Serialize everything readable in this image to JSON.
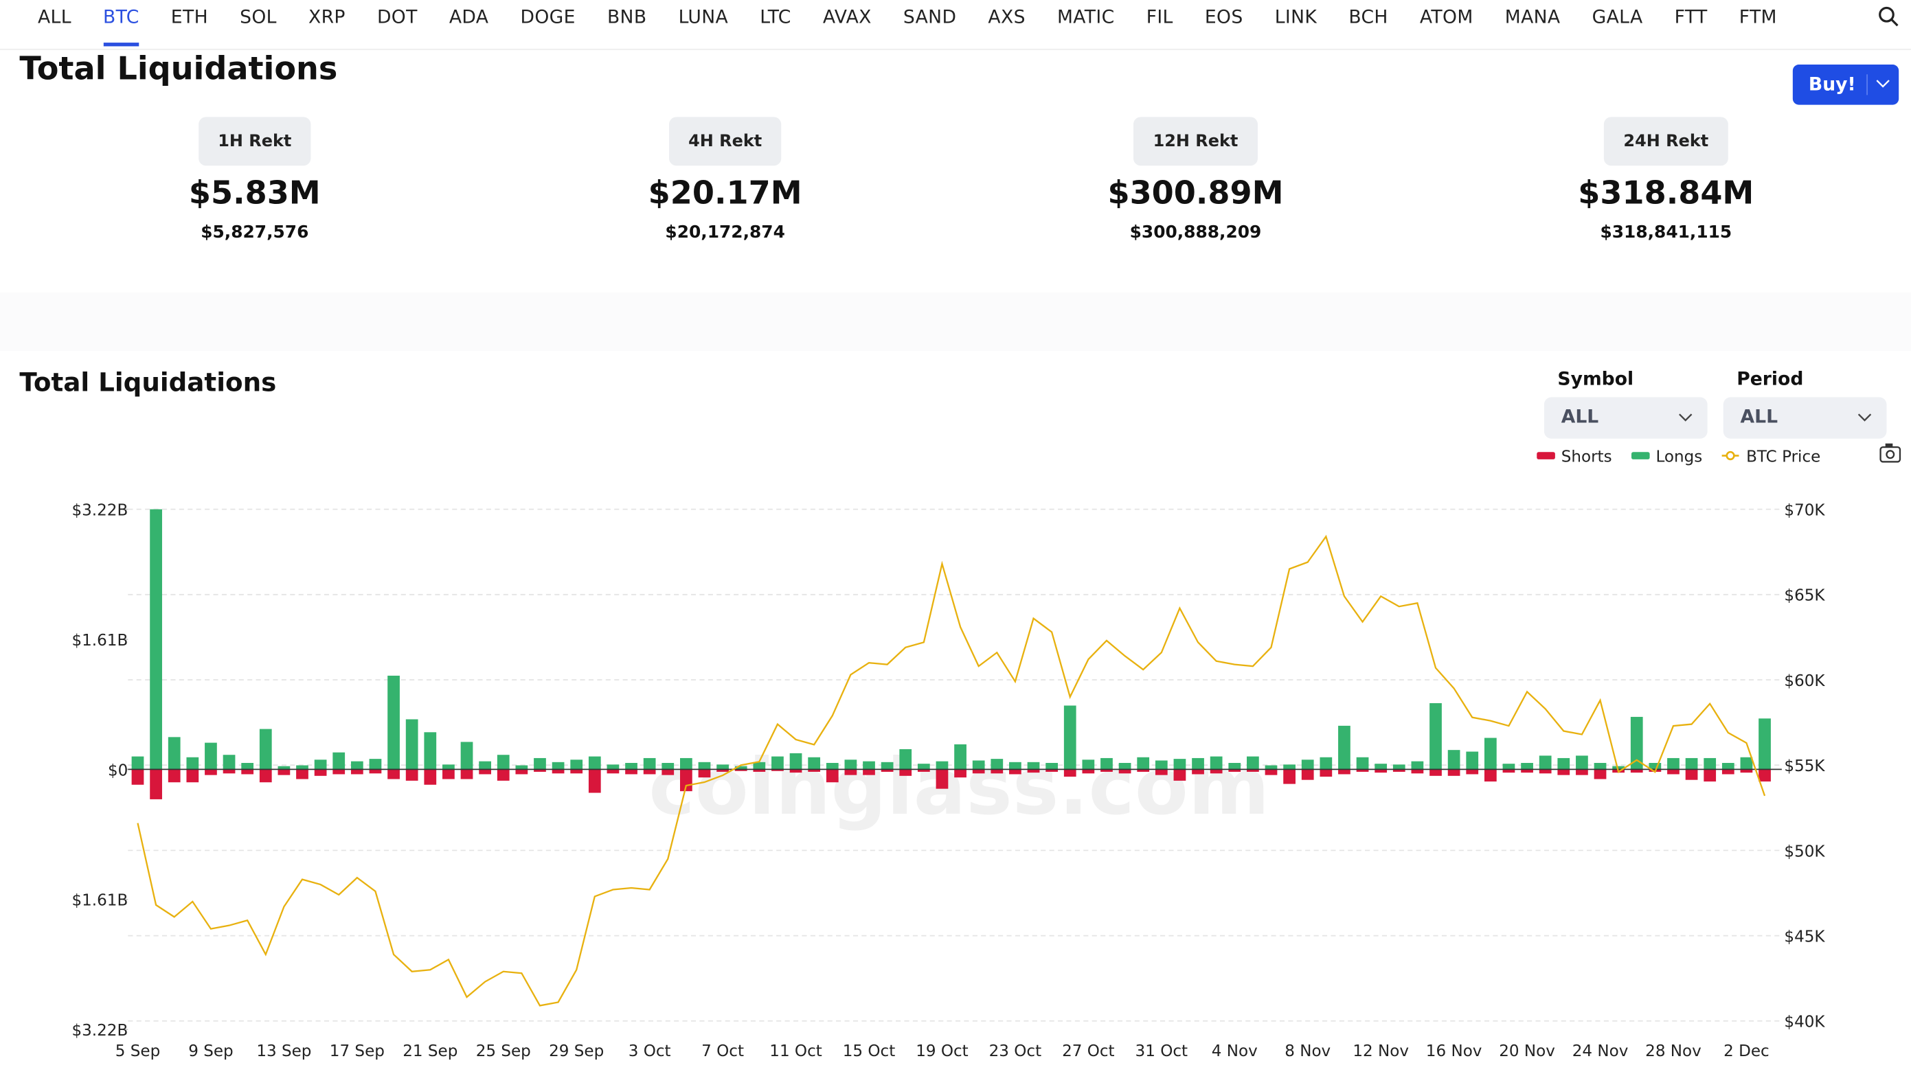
{
  "tabs": [
    "ALL",
    "BTC",
    "ETH",
    "SOL",
    "XRP",
    "DOT",
    "ADA",
    "DOGE",
    "BNB",
    "LUNA",
    "LTC",
    "AVAX",
    "SAND",
    "AXS",
    "MATIC",
    "FIL",
    "EOS",
    "LINK",
    "BCH",
    "ATOM",
    "MANA",
    "GALA",
    "FTT",
    "FTM"
  ],
  "active_tab": 1,
  "header": {
    "title": "Total Liquidations",
    "buy": "Buy!"
  },
  "stats": [
    {
      "label": "1H Rekt",
      "value": "$5.83M",
      "exact": "$5,827,576"
    },
    {
      "label": "4H Rekt",
      "value": "$20.17M",
      "exact": "$20,172,874"
    },
    {
      "label": "12H Rekt",
      "value": "$300.89M",
      "exact": "$300,888,209"
    },
    {
      "label": "24H Rekt",
      "value": "$318.84M",
      "exact": "$318,841,115"
    }
  ],
  "controls": {
    "symbol_label": "Symbol",
    "symbol_value": "ALL",
    "period_label": "Period",
    "period_value": "ALL"
  },
  "chart_data": {
    "type": "bar",
    "title": "Total Liquidations",
    "watermark": "coinglass.com",
    "categories": [
      "5 Sep",
      null,
      null,
      null,
      "9 Sep",
      null,
      null,
      null,
      "13 Sep",
      null,
      null,
      null,
      "17 Sep",
      null,
      null,
      null,
      "21 Sep",
      null,
      null,
      null,
      "25 Sep",
      null,
      null,
      null,
      "29 Sep",
      null,
      null,
      null,
      "3 Oct",
      null,
      null,
      null,
      "7 Oct",
      null,
      null,
      null,
      "11 Oct",
      null,
      null,
      null,
      "15 Oct",
      null,
      null,
      null,
      "19 Oct",
      null,
      null,
      null,
      "23 Oct",
      null,
      null,
      null,
      "27 Oct",
      null,
      null,
      null,
      "31 Oct",
      null,
      null,
      null,
      "4 Nov",
      null,
      null,
      null,
      "8 Nov",
      null,
      null,
      null,
      "12 Nov",
      null,
      null,
      null,
      "16 Nov",
      null,
      null,
      null,
      "20 Nov",
      null,
      null,
      null,
      "24 Nov",
      null,
      null,
      null,
      "28 Nov",
      null,
      null,
      null,
      "2 Dec",
      null
    ],
    "series": [
      {
        "name": "Shorts",
        "color": "#d8163b",
        "type": "bar",
        "values": [
          -0.19,
          -0.37,
          -0.16,
          -0.16,
          -0.07,
          -0.05,
          -0.06,
          -0.16,
          -0.07,
          -0.12,
          -0.08,
          -0.06,
          -0.06,
          -0.05,
          -0.12,
          -0.14,
          -0.19,
          -0.12,
          -0.12,
          -0.06,
          -0.14,
          -0.06,
          -0.03,
          -0.05,
          -0.05,
          -0.29,
          -0.05,
          -0.06,
          -0.06,
          -0.07,
          -0.27,
          -0.1,
          -0.03,
          -0.02,
          -0.03,
          -0.02,
          -0.04,
          -0.03,
          -0.16,
          -0.07,
          -0.07,
          -0.03,
          -0.08,
          -0.03,
          -0.24,
          -0.1,
          -0.05,
          -0.05,
          -0.06,
          -0.04,
          -0.03,
          -0.09,
          -0.05,
          -0.03,
          -0.05,
          -0.03,
          -0.07,
          -0.14,
          -0.06,
          -0.05,
          -0.03,
          -0.03,
          -0.07,
          -0.18,
          -0.13,
          -0.09,
          -0.06,
          -0.03,
          -0.04,
          -0.03,
          -0.05,
          -0.08,
          -0.08,
          -0.06,
          -0.15,
          -0.04,
          -0.04,
          -0.05,
          -0.07,
          -0.07,
          -0.12,
          -0.04,
          -0.04,
          -0.03,
          -0.06,
          -0.13,
          -0.15,
          -0.06,
          -0.04,
          -0.15
        ]
      },
      {
        "name": "Longs",
        "color": "#35b36e",
        "type": "bar",
        "values": [
          0.16,
          3.22,
          0.4,
          0.15,
          0.33,
          0.18,
          0.08,
          0.5,
          0.04,
          0.05,
          0.12,
          0.21,
          0.1,
          0.13,
          1.16,
          0.62,
          0.46,
          0.06,
          0.34,
          0.1,
          0.18,
          0.05,
          0.14,
          0.09,
          0.12,
          0.16,
          0.06,
          0.08,
          0.14,
          0.08,
          0.14,
          0.09,
          0.06,
          0.04,
          0.09,
          0.16,
          0.2,
          0.15,
          0.08,
          0.12,
          0.1,
          0.09,
          0.25,
          0.07,
          0.1,
          0.31,
          0.11,
          0.13,
          0.09,
          0.09,
          0.08,
          0.79,
          0.12,
          0.14,
          0.08,
          0.15,
          0.11,
          0.13,
          0.14,
          0.16,
          0.08,
          0.16,
          0.05,
          0.06,
          0.12,
          0.15,
          0.54,
          0.15,
          0.07,
          0.06,
          0.1,
          0.82,
          0.24,
          0.22,
          0.39,
          0.07,
          0.08,
          0.17,
          0.14,
          0.17,
          0.08,
          0.04,
          0.65,
          0.08,
          0.14,
          0.14,
          0.14,
          0.08,
          0.15,
          0.63
        ]
      },
      {
        "name": "BTC Price",
        "color": "#e8b10f",
        "type": "line",
        "axis": "y2",
        "values": [
          51600,
          46800,
          46100,
          47000,
          45400,
          45600,
          45900,
          43900,
          46700,
          48300,
          48000,
          47400,
          48400,
          47600,
          43900,
          42900,
          43000,
          43600,
          41400,
          42300,
          42900,
          42800,
          40900,
          41100,
          43000,
          47300,
          47700,
          47800,
          47700,
          49500,
          53800,
          54000,
          54400,
          55000,
          55200,
          57400,
          56500,
          56200,
          57900,
          60300,
          61000,
          60900,
          61900,
          62200,
          66800,
          63100,
          60800,
          61600,
          59900,
          63600,
          62800,
          59000,
          61200,
          62300,
          61400,
          60600,
          61600,
          64200,
          62200,
          61100,
          60900,
          60800,
          61900,
          66500,
          66900,
          68400,
          64900,
          63400,
          64900,
          64300,
          64500,
          60700,
          59500,
          57800,
          57600,
          57300,
          59300,
          58300,
          57000,
          56800,
          58800,
          54600,
          55300,
          54600,
          57300,
          57400,
          58600,
          56900,
          56300,
          53200
        ]
      }
    ],
    "ylim": [
      -3.22,
      3.22
    ],
    "yticks": [
      {
        "value": 3.22,
        "label": "$3.22B"
      },
      {
        "value": 1.61,
        "label": "$1.61B"
      },
      {
        "value": 0,
        "label": "$0"
      },
      {
        "value": -1.61,
        "label": "$1.61B"
      },
      {
        "value": -3.22,
        "label": "$3.22B"
      }
    ],
    "y2lim": [
      39500,
      70000
    ],
    "y2ticks": [
      {
        "value": 70000,
        "label": "$70K"
      },
      {
        "value": 65000,
        "label": "$65K"
      },
      {
        "value": 60000,
        "label": "$60K"
      },
      {
        "value": 55000,
        "label": "$55K"
      },
      {
        "value": 50000,
        "label": "$50K"
      },
      {
        "value": 45000,
        "label": "$45K"
      },
      {
        "value": 40000,
        "label": "$40K"
      }
    ],
    "grid": true
  }
}
